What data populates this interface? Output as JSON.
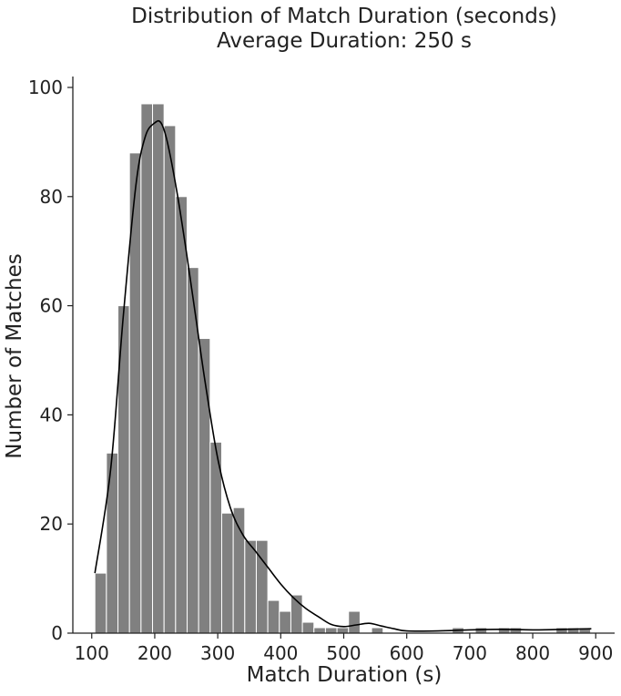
{
  "chart_data": {
    "type": "bar",
    "title": "Distribution of Match Duration (seconds)",
    "subtitle": "Average Duration: 250 s",
    "xlabel": "Match Duration (s)",
    "ylabel": "Number of Matches",
    "xlim": [
      70,
      930
    ],
    "ylim": [
      0,
      102
    ],
    "x_ticks": [
      100,
      200,
      300,
      400,
      500,
      600,
      700,
      800,
      900
    ],
    "y_ticks": [
      0,
      20,
      40,
      60,
      80,
      100
    ],
    "bin_edges": [
      105,
      123.3,
      141.6,
      159.9,
      178.2,
      196.5,
      214.8,
      233.1,
      251.4,
      269.7,
      288,
      306.3,
      324.6,
      342.9,
      361.2,
      379.5,
      397.8,
      416.1,
      434.4,
      452.7,
      471,
      489.3,
      507.6,
      525.9,
      544.2,
      562.5,
      580.8,
      599.1,
      617.4,
      635.7,
      654,
      672.3,
      690.6,
      708.9,
      727.2,
      745.5,
      763.8,
      782.1,
      800.4,
      818.7,
      837,
      855.3,
      873.6,
      891.9
    ],
    "values": [
      11,
      33,
      60,
      88,
      97,
      97,
      93,
      80,
      67,
      54,
      35,
      22,
      23,
      17,
      17,
      6,
      4,
      7,
      2,
      1,
      1,
      1,
      4,
      0,
      1,
      0,
      0,
      0,
      0,
      0,
      0,
      1,
      0,
      1,
      0,
      1,
      1,
      0,
      0,
      0,
      1,
      1,
      1
    ],
    "kde": {
      "x": [
        105,
        130,
        150,
        170,
        185,
        200,
        210,
        220,
        235,
        250,
        265,
        280,
        300,
        320,
        340,
        360,
        380,
        400,
        420,
        440,
        460,
        480,
        500,
        520,
        540,
        560,
        580,
        600,
        650,
        700,
        750,
        800,
        850,
        893
      ],
      "y": [
        11,
        30,
        58,
        82,
        91,
        93.5,
        93.5,
        90,
        81,
        70,
        58,
        46,
        32,
        23,
        18,
        15,
        12,
        9,
        6.5,
        4.5,
        3,
        1.6,
        1.2,
        1.5,
        1.8,
        1.3,
        0.8,
        0.4,
        0.4,
        0.6,
        0.7,
        0.6,
        0.7,
        0.8
      ]
    },
    "bar_color": "#808080",
    "bar_edge_color": "#ffffff",
    "kde_color": "#000000",
    "axis_color": "#222222",
    "grid": false,
    "legend": "none"
  }
}
